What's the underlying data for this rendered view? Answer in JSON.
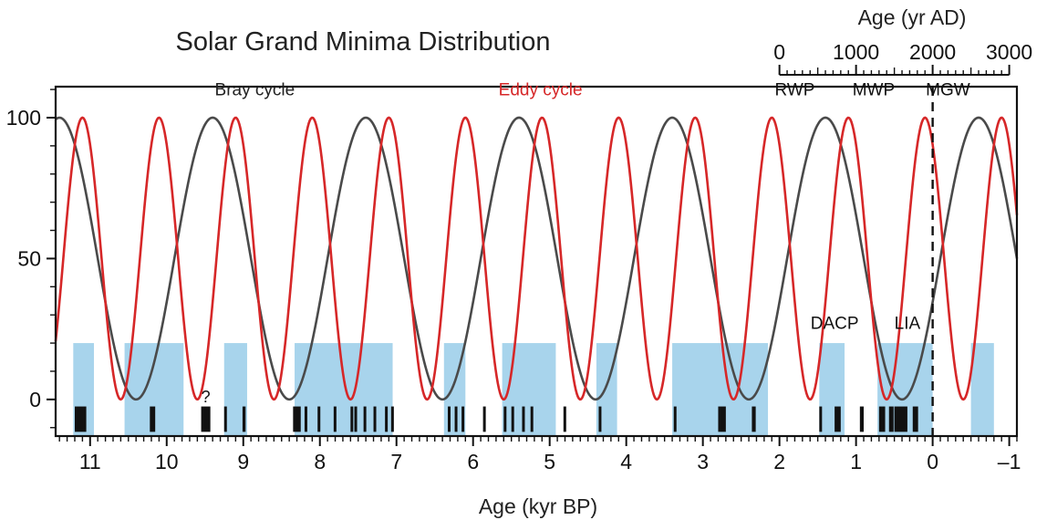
{
  "chart_data": {
    "type": "line",
    "title": "Solar Grand Minima Distribution",
    "xlabel": "Age (kyr BP)",
    "x2label": "Age (yr AD)",
    "x_ticks": [
      "11",
      "10",
      "9",
      "8",
      "7",
      "6",
      "5",
      "4",
      "3",
      "2",
      "1",
      "0",
      "–1"
    ],
    "x_tick_values": [
      11,
      10,
      9,
      8,
      7,
      6,
      5,
      4,
      3,
      2,
      1,
      0,
      -1
    ],
    "x2_ticks": [
      "0",
      "1000",
      "2000",
      "3000"
    ],
    "x2_tick_values": [
      0,
      1000,
      2000,
      3000
    ],
    "y_ticks": [
      "0",
      "50",
      "100"
    ],
    "y_tick_values": [
      0,
      50,
      100
    ],
    "xlim": [
      11.45,
      -1.1
    ],
    "ylim": [
      -13,
      111
    ],
    "series": [
      {
        "name": "Bray cycle",
        "color": "#4a4a4a",
        "period_kyr": 2.0,
        "peak_times_kyr": [
          11.4,
          9.4,
          7.4,
          5.4,
          3.4,
          1.4,
          -0.6
        ],
        "amplitude_range": [
          0,
          100
        ]
      },
      {
        "name": "Eddy cycle",
        "color": "#d62728",
        "period_kyr": 1.0,
        "peak_times_kyr": [
          10.1,
          9.1,
          8.1,
          7.1,
          6.1,
          5.1,
          4.1,
          3.1,
          2.1,
          1.1,
          0.1,
          -0.9
        ],
        "amplitude_range": [
          0,
          100
        ]
      }
    ],
    "shaded_intervals_kyr": [
      [
        11.22,
        10.95
      ],
      [
        10.55,
        9.78
      ],
      [
        9.25,
        8.95
      ],
      [
        8.33,
        7.05
      ],
      [
        6.38,
        6.1
      ],
      [
        5.62,
        4.92
      ],
      [
        4.39,
        4.12
      ],
      [
        3.4,
        2.15
      ],
      [
        1.48,
        1.15
      ],
      [
        0.72,
        0.0
      ],
      [
        -0.5,
        -0.8
      ]
    ],
    "shaded_top_value": 20,
    "grand_minima_kyr": [
      [
        11.2,
        11.05
      ],
      [
        10.22,
        10.15
      ],
      [
        9.55,
        9.43
      ],
      [
        9.25,
        9.22
      ],
      [
        9.01,
        8.97
      ],
      [
        8.35,
        8.25
      ],
      [
        8.2,
        8.17
      ],
      [
        8.03,
        8.0
      ],
      [
        7.82,
        7.79
      ],
      [
        7.6,
        7.57
      ],
      [
        7.55,
        7.52
      ],
      [
        7.43,
        7.4
      ],
      [
        7.3,
        7.27
      ],
      [
        7.15,
        7.12
      ],
      [
        7.07,
        7.04
      ],
      [
        6.33,
        6.3
      ],
      [
        6.24,
        6.21
      ],
      [
        6.15,
        6.12
      ],
      [
        5.87,
        5.84
      ],
      [
        5.6,
        5.57
      ],
      [
        5.5,
        5.47
      ],
      [
        5.36,
        5.33
      ],
      [
        5.25,
        5.22
      ],
      [
        4.82,
        4.79
      ],
      [
        4.36,
        4.33
      ],
      [
        3.38,
        3.35
      ],
      [
        2.8,
        2.7
      ],
      [
        2.36,
        2.31
      ],
      [
        1.48,
        1.45
      ],
      [
        1.28,
        1.2
      ],
      [
        0.95,
        0.9
      ],
      [
        0.7,
        0.62
      ],
      [
        0.57,
        0.51
      ],
      [
        0.5,
        0.33
      ],
      [
        0.26,
        0.19
      ]
    ],
    "question_mark_kyr": 9.49,
    "present_line_kyr": 0,
    "period_labels": [
      {
        "text": "RWP",
        "x": 1.8,
        "y": 108
      },
      {
        "text": "MWP",
        "x": 0.77,
        "y": 108
      },
      {
        "text": "MGW",
        "x": -0.2,
        "y": 108
      },
      {
        "text": "DACP",
        "x": 1.28,
        "y": 25
      },
      {
        "text": "LIA",
        "x": 0.33,
        "y": 25
      }
    ],
    "series_labels": [
      {
        "text": "Bray cycle",
        "x": 8.85,
        "y": 108,
        "color": "#222222"
      },
      {
        "text": "Eddy cycle",
        "x": 5.12,
        "y": 108,
        "color": "#d62728"
      }
    ],
    "question_mark": "?",
    "colors": {
      "shading": "#a8d4ec",
      "minima_bars": "#111111",
      "axis": "#111111",
      "bray": "#4a4a4a",
      "eddy": "#d62728"
    }
  }
}
